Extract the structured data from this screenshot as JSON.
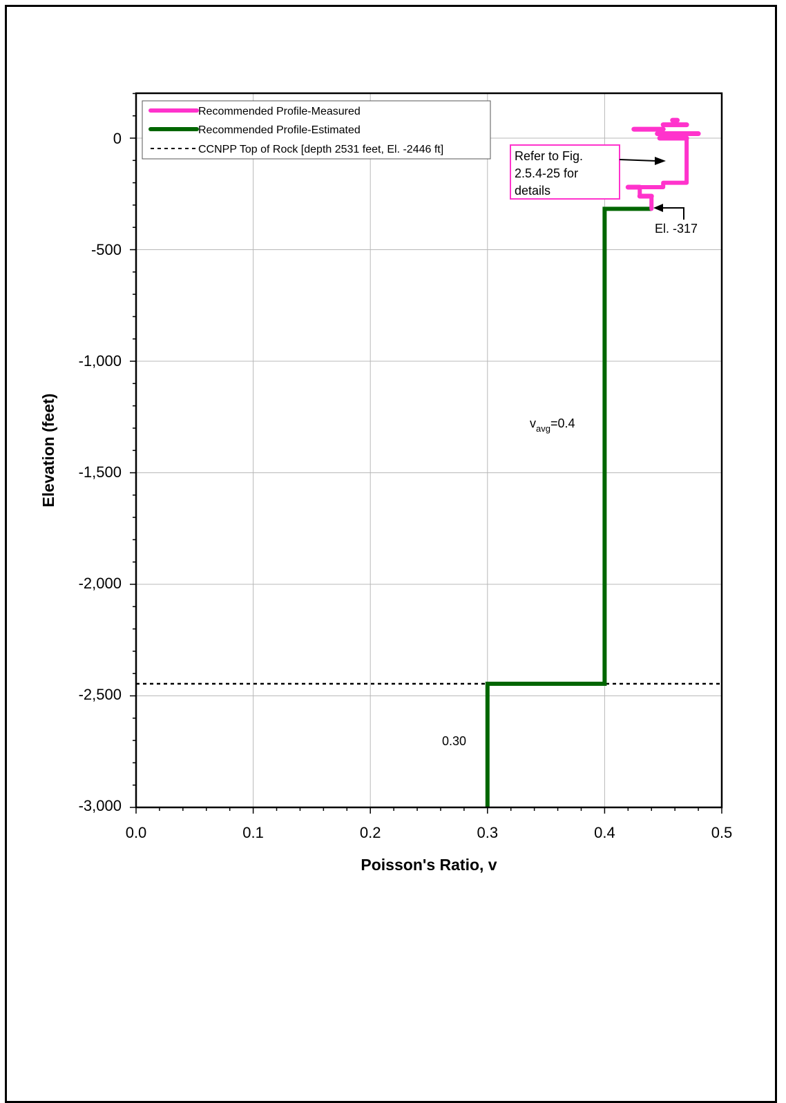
{
  "chart_data": {
    "type": "line",
    "xlabel": "Poisson's Ratio, v",
    "ylabel": "Elevation (feet)",
    "xlim": [
      0.0,
      0.5
    ],
    "ylim": [
      -3000,
      0
    ],
    "x_ticks": [
      "0.0",
      "0.1",
      "0.2",
      "0.3",
      "0.4",
      "0.5"
    ],
    "y_ticks": [
      "0",
      "-500",
      "-1,000",
      "-1,500",
      "-2,000",
      "-2,500",
      "-3,000"
    ],
    "grid": true,
    "legend_position": "top-left",
    "series": [
      {
        "name": "Recommended Profile-Measured",
        "color": "#ff33cc",
        "points": [
          [
            0.47,
            0
          ],
          [
            0.47,
            -200
          ],
          [
            0.45,
            -200
          ],
          [
            0.45,
            -220
          ],
          [
            0.43,
            -220
          ],
          [
            0.43,
            -260
          ],
          [
            0.44,
            -260
          ],
          [
            0.44,
            -317
          ]
        ],
        "bars": [
          {
            "y": 40,
            "x_start": 0.425,
            "x_end": 0.45
          },
          {
            "y": 60,
            "x_start": 0.45,
            "x_end": 0.47
          },
          {
            "y": 80,
            "x_start": 0.458,
            "x_end": 0.462
          },
          {
            "y": 20,
            "x_start": 0.445,
            "x_end": 0.48
          },
          {
            "y": 0,
            "x_start": 0.447,
            "x_end": 0.47
          },
          {
            "y": -220,
            "x_start": 0.42,
            "x_end": 0.43
          },
          {
            "y": -260,
            "x_start": 0.43,
            "x_end": 0.44
          }
        ]
      },
      {
        "name": "Recommended Profile-Estimated",
        "color": "#006600",
        "points": [
          [
            0.44,
            -317
          ],
          [
            0.4,
            -317
          ],
          [
            0.4,
            -2446
          ],
          [
            0.3,
            -2446
          ],
          [
            0.3,
            -3000
          ]
        ]
      },
      {
        "name": "CCNPP Top of Rock [depth 2531 feet, El. -2446 ft]",
        "color": "#000000",
        "style": "dotted",
        "y": -2446
      }
    ],
    "annotations": {
      "refer_line1": "Refer to Fig.",
      "refer_line2": "2.5.4-25 for",
      "refer_line3": "details",
      "el_label": "El. -317",
      "vavg_base": "v",
      "vavg_sub": "avg",
      "vavg_value": "=0.4",
      "low_value": "0.30"
    }
  },
  "colors": {
    "measured": "#ff33cc",
    "estimated": "#006600",
    "rock": "#000000"
  }
}
